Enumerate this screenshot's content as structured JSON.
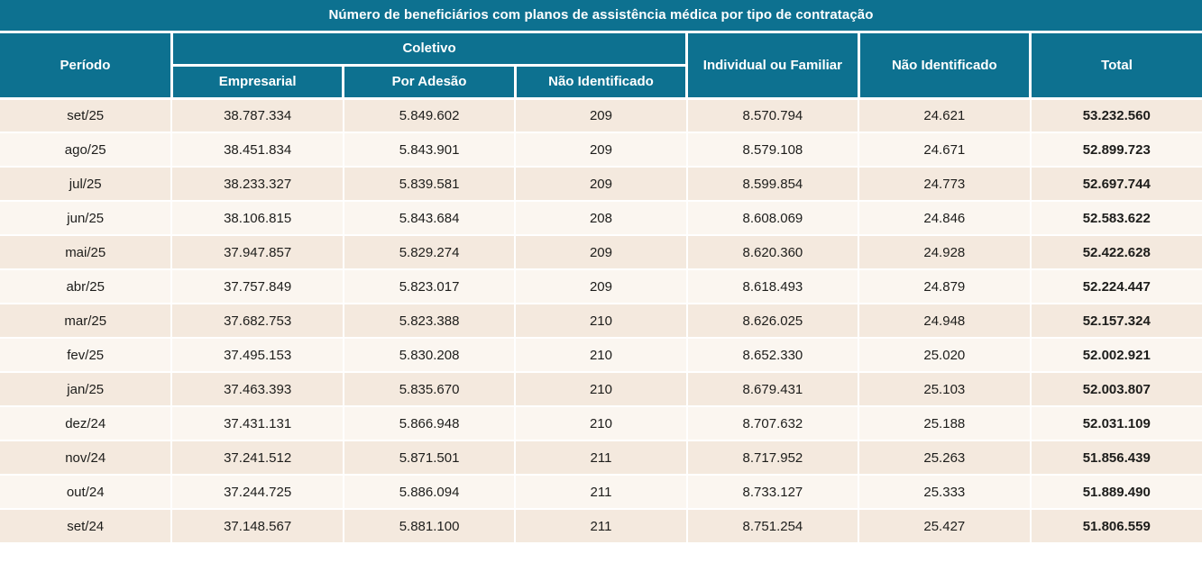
{
  "title": "Número de beneficiários com planos de assistência médica por tipo de contratação",
  "colors": {
    "header_teal": "#0d7190",
    "row_odd": "#f4e9de",
    "row_even": "#fbf6f0",
    "text_dark": "#1d1d1b",
    "grid_line": "#ffffff"
  },
  "header": {
    "periodo": "Período",
    "coletivo_group": "Coletivo",
    "empresarial": "Empresarial",
    "por_adesao": "Por Adesão",
    "coletivo_nao_identificado": "Não Identificado",
    "individual_ou_familiar": "Individual ou Familiar",
    "nao_identificado": "Não Identificado",
    "total": "Total"
  },
  "chart_data": {
    "type": "table",
    "title": "Número de beneficiários com planos de assistência médica por tipo de contratação",
    "columns": [
      "Período",
      "Coletivo - Empresarial",
      "Coletivo - Por Adesão",
      "Coletivo - Não Identificado",
      "Individual ou Familiar",
      "Não Identificado",
      "Total"
    ],
    "rows": [
      [
        "set/25",
        "38.787.334",
        "5.849.602",
        "209",
        "8.570.794",
        "24.621",
        "53.232.560"
      ],
      [
        "ago/25",
        "38.451.834",
        "5.843.901",
        "209",
        "8.579.108",
        "24.671",
        "52.899.723"
      ],
      [
        "jul/25",
        "38.233.327",
        "5.839.581",
        "209",
        "8.599.854",
        "24.773",
        "52.697.744"
      ],
      [
        "jun/25",
        "38.106.815",
        "5.843.684",
        "208",
        "8.608.069",
        "24.846",
        "52.583.622"
      ],
      [
        "mai/25",
        "37.947.857",
        "5.829.274",
        "209",
        "8.620.360",
        "24.928",
        "52.422.628"
      ],
      [
        "abr/25",
        "37.757.849",
        "5.823.017",
        "209",
        "8.618.493",
        "24.879",
        "52.224.447"
      ],
      [
        "mar/25",
        "37.682.753",
        "5.823.388",
        "210",
        "8.626.025",
        "24.948",
        "52.157.324"
      ],
      [
        "fev/25",
        "37.495.153",
        "5.830.208",
        "210",
        "8.652.330",
        "25.020",
        "52.002.921"
      ],
      [
        "jan/25",
        "37.463.393",
        "5.835.670",
        "210",
        "8.679.431",
        "25.103",
        "52.003.807"
      ],
      [
        "dez/24",
        "37.431.131",
        "5.866.948",
        "210",
        "8.707.632",
        "25.188",
        "52.031.109"
      ],
      [
        "nov/24",
        "37.241.512",
        "5.871.501",
        "211",
        "8.717.952",
        "25.263",
        "51.856.439"
      ],
      [
        "out/24",
        "37.244.725",
        "5.886.094",
        "211",
        "8.733.127",
        "25.333",
        "51.889.490"
      ],
      [
        "set/24",
        "37.148.567",
        "5.881.100",
        "211",
        "8.751.254",
        "25.427",
        "51.806.559"
      ]
    ]
  }
}
